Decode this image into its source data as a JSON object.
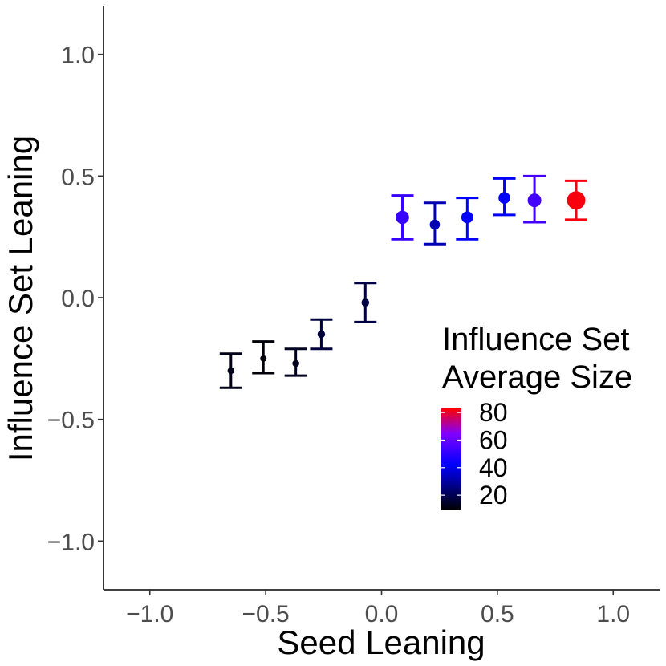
{
  "chart_data": {
    "type": "scatter",
    "title": "",
    "xlabel": "Seed Leaning",
    "ylabel": "Influence Set Leaning",
    "xlim": [
      -1.2,
      1.2
    ],
    "ylim": [
      -1.2,
      1.2
    ],
    "x_ticks": [
      -1.0,
      -0.5,
      0.0,
      0.5,
      1.0
    ],
    "x_tick_labels": [
      "−1.0",
      "−0.5",
      "0.0",
      "0.5",
      "1.0"
    ],
    "y_ticks": [
      -1.0,
      -0.5,
      0.0,
      0.5,
      1.0
    ],
    "y_tick_labels": [
      "−1.0",
      "−0.5",
      "0.0",
      "0.5",
      "1.0"
    ],
    "grid": false,
    "points": [
      {
        "x": -0.65,
        "y": -0.3,
        "lower": -0.37,
        "upper": -0.23,
        "avg_size": 12
      },
      {
        "x": -0.51,
        "y": -0.25,
        "lower": -0.31,
        "upper": -0.18,
        "avg_size": 10
      },
      {
        "x": -0.37,
        "y": -0.27,
        "lower": -0.32,
        "upper": -0.21,
        "avg_size": 13
      },
      {
        "x": -0.26,
        "y": -0.15,
        "lower": -0.21,
        "upper": -0.09,
        "avg_size": 17
      },
      {
        "x": -0.07,
        "y": -0.02,
        "lower": -0.1,
        "upper": 0.06,
        "avg_size": 18
      },
      {
        "x": 0.09,
        "y": 0.33,
        "lower": 0.24,
        "upper": 0.42,
        "avg_size": 52
      },
      {
        "x": 0.23,
        "y": 0.3,
        "lower": 0.22,
        "upper": 0.39,
        "avg_size": 32
      },
      {
        "x": 0.37,
        "y": 0.33,
        "lower": 0.24,
        "upper": 0.41,
        "avg_size": 43
      },
      {
        "x": 0.53,
        "y": 0.41,
        "lower": 0.34,
        "upper": 0.49,
        "avg_size": 42
      },
      {
        "x": 0.66,
        "y": 0.4,
        "lower": 0.31,
        "upper": 0.5,
        "avg_size": 54
      },
      {
        "x": 0.84,
        "y": 0.4,
        "lower": 0.32,
        "upper": 0.48,
        "avg_size": 82
      }
    ],
    "legend": {
      "title_line1": "Influence Set",
      "title_line2": "Average Size",
      "position": "right",
      "breaks": [
        80,
        60,
        40,
        20
      ],
      "range": [
        9,
        83
      ],
      "colors": [
        "#000000",
        "#0000ff",
        "#ff0000"
      ]
    }
  }
}
